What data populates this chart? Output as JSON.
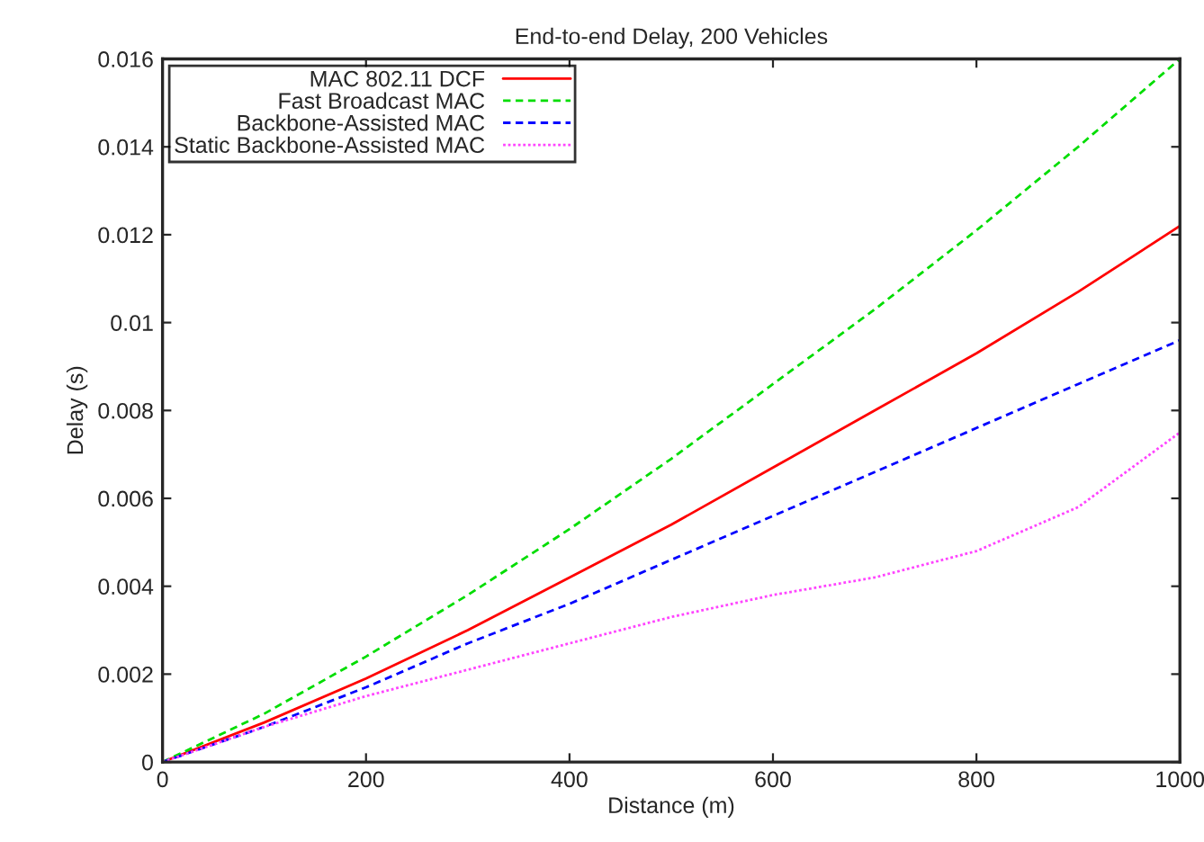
{
  "chart_data": {
    "type": "line",
    "title": "End-to-end Delay, 200 Vehicles",
    "xlabel": "Distance (m)",
    "ylabel": "Delay (s)",
    "x": [
      0,
      100,
      200,
      300,
      400,
      500,
      600,
      700,
      800,
      900,
      1000
    ],
    "series": [
      {
        "name": "MAC 802.11 DCF",
        "color": "#ff0000",
        "line_style": "solid",
        "values": [
          0,
          0.0009,
          0.0019,
          0.003,
          0.0042,
          0.0054,
          0.0067,
          0.008,
          0.0093,
          0.0107,
          0.0122
        ]
      },
      {
        "name": "Fast Broadcast MAC",
        "color": "#00dd00",
        "line_style": "dashed",
        "values": [
          0,
          0.0011,
          0.0024,
          0.0038,
          0.0053,
          0.0069,
          0.0086,
          0.0103,
          0.0121,
          0.014,
          0.016
        ]
      },
      {
        "name": "Backbone-Assisted MAC",
        "color": "#0000ff",
        "line_style": "dashed",
        "values": [
          0,
          0.0008,
          0.0017,
          0.0027,
          0.0036,
          0.0046,
          0.0056,
          0.0066,
          0.0076,
          0.0086,
          0.0096
        ]
      },
      {
        "name": "Static Backbone-Assisted MAC",
        "color": "#ff44ff",
        "line_style": "dotted",
        "values": [
          0,
          0.0008,
          0.0015,
          0.0021,
          0.0027,
          0.0033,
          0.0038,
          0.0042,
          0.0048,
          0.0058,
          0.0075
        ]
      }
    ],
    "xlim": [
      0,
      1000
    ],
    "xticks": [
      0,
      200,
      400,
      600,
      800,
      1000
    ],
    "ylim": [
      0,
      0.016
    ],
    "yticks": [
      0,
      0.002,
      0.004,
      0.006,
      0.008,
      0.01,
      0.012,
      0.014,
      0.016
    ],
    "grid": false,
    "legend": "top left",
    "marker": "none"
  }
}
